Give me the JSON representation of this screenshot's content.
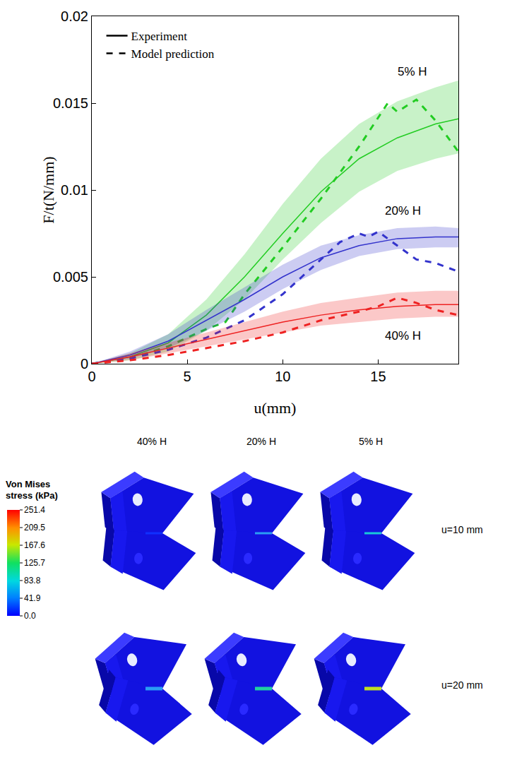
{
  "chart_data": {
    "type": "line",
    "x_label": "u(mm)",
    "y_label": "F/t(N/mm)",
    "xlim": [
      0,
      19.2
    ],
    "xticks": [
      0,
      5,
      10,
      15
    ],
    "ylim": [
      0,
      0.02
    ],
    "yticks": [
      0,
      0.005,
      0.01,
      0.015,
      0.02
    ],
    "grid": false,
    "legend": "upper left",
    "legend_items": [
      {
        "name": "Model prediction",
        "line_style": "dashed",
        "color": "#000000"
      },
      {
        "name": "Experiment",
        "line_style": "solid",
        "color": "#000000"
      }
    ],
    "series": [
      {
        "name": "5% H",
        "color": "#22cc22",
        "label_at": [
          16.8,
          0.0168
        ],
        "experiment": {
          "x": [
            0,
            2,
            4,
            6,
            8,
            10,
            12,
            14,
            16,
            18,
            19.2
          ],
          "values": [
            0,
            0.0004,
            0.0012,
            0.0028,
            0.005,
            0.0075,
            0.0099,
            0.0118,
            0.013,
            0.0138,
            0.0141
          ],
          "lower": [
            0,
            0.0002,
            0.0007,
            0.0019,
            0.0037,
            0.006,
            0.0081,
            0.0099,
            0.0111,
            0.0118,
            0.0121
          ],
          "upper": [
            0,
            0.0006,
            0.0017,
            0.0037,
            0.0063,
            0.0092,
            0.0118,
            0.0138,
            0.0151,
            0.0159,
            0.0163
          ]
        },
        "model": {
          "x": [
            0,
            2,
            4,
            6,
            7,
            8,
            10,
            12,
            14,
            15,
            15.5,
            16,
            17,
            18,
            19.2
          ],
          "values": [
            0,
            0.0003,
            0.001,
            0.002,
            0.0024,
            0.004,
            0.0067,
            0.0095,
            0.0125,
            0.0142,
            0.015,
            0.0145,
            0.0152,
            0.014,
            0.0122
          ]
        }
      },
      {
        "name": "20% H",
        "color": "#3333cc",
        "label_at": [
          16.3,
          0.0088
        ],
        "experiment": {
          "x": [
            0,
            2,
            4,
            6,
            8,
            10,
            12,
            14,
            16,
            18,
            19.2
          ],
          "values": [
            0,
            0.0005,
            0.0013,
            0.0025,
            0.0037,
            0.005,
            0.0061,
            0.0068,
            0.0072,
            0.0073,
            0.0073
          ],
          "lower": [
            0,
            0.0003,
            0.0009,
            0.0019,
            0.003,
            0.0043,
            0.0054,
            0.0062,
            0.0066,
            0.0067,
            0.0067
          ],
          "upper": [
            0,
            0.0007,
            0.0017,
            0.0031,
            0.0044,
            0.0057,
            0.0068,
            0.0074,
            0.0078,
            0.0079,
            0.0078
          ]
        },
        "model": {
          "x": [
            0,
            2,
            4,
            6,
            8,
            10,
            11,
            12,
            13,
            14,
            14.5,
            15,
            16,
            17,
            18,
            19.2
          ],
          "values": [
            0,
            0.0003,
            0.0008,
            0.0015,
            0.0025,
            0.004,
            0.005,
            0.006,
            0.007,
            0.0075,
            0.0073,
            0.0076,
            0.0068,
            0.006,
            0.0058,
            0.0053
          ]
        }
      },
      {
        "name": "40% H",
        "color": "#ee2222",
        "label_at": [
          16.3,
          0.0016
        ],
        "experiment": {
          "x": [
            0,
            2,
            4,
            6,
            8,
            10,
            12,
            14,
            16,
            18,
            19.2
          ],
          "values": [
            0,
            0.0004,
            0.0009,
            0.0014,
            0.0019,
            0.0024,
            0.0028,
            0.0031,
            0.0033,
            0.0034,
            0.0034
          ],
          "lower": [
            0,
            0.0002,
            0.0006,
            0.001,
            0.0014,
            0.0018,
            0.0022,
            0.0024,
            0.0026,
            0.0027,
            0.0027
          ],
          "upper": [
            0,
            0.0006,
            0.0012,
            0.0018,
            0.0024,
            0.003,
            0.0035,
            0.0038,
            0.0041,
            0.0042,
            0.0042
          ]
        },
        "model": {
          "x": [
            0,
            2,
            4,
            6,
            8,
            10,
            12,
            14,
            15,
            16,
            17,
            18,
            19.2
          ],
          "values": [
            0,
            0.0002,
            0.0005,
            0.0009,
            0.0013,
            0.0018,
            0.0025,
            0.003,
            0.0033,
            0.0038,
            0.0035,
            0.0031,
            0.0028
          ]
        }
      }
    ]
  },
  "figure": {
    "type": "diagram",
    "columns": [
      "40% H",
      "20% H",
      "5% H"
    ],
    "rows": [
      "u=10 mm",
      "u=20 mm"
    ],
    "colorbar": {
      "title": "Von Mises stress (kPa)",
      "range": [
        0,
        251.4
      ],
      "ticks": [
        251.4,
        209.5,
        167.6,
        125.7,
        83.8,
        41.9,
        {
          "value": 0,
          "label": "0.0"
        }
      ]
    }
  }
}
